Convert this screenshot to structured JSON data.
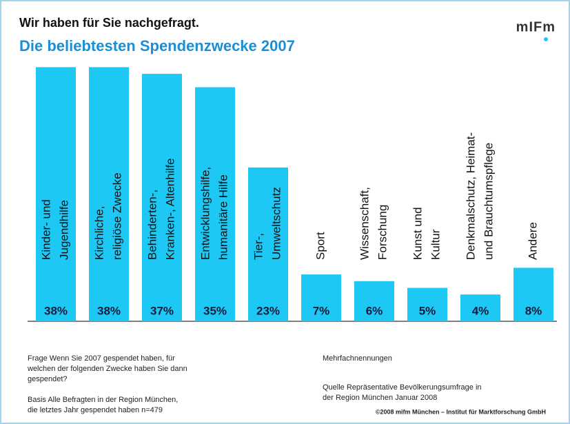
{
  "chart_data": {
    "type": "bar",
    "title": "Wir haben für Sie nachgefragt.",
    "subtitle": "Die beliebtesten Spendenzwecke 2007",
    "logo": "mIFm",
    "categories": [
      [
        "Kinder- und",
        "Jugendhilfe"
      ],
      [
        "Kirchliche,",
        "religiöse Zwecke"
      ],
      [
        "Behinderten-,",
        "Kranken-, Altenhilfe"
      ],
      [
        "Entwicklungshilfe,",
        "humanitäre Hilfe"
      ],
      [
        "Tier-,",
        "Umweltschutz"
      ],
      [
        "Sport"
      ],
      [
        "Wissenschaft,",
        "Forschung"
      ],
      [
        "Kunst und",
        "Kultur"
      ],
      [
        "Denkmalschutz, Heimat-",
        "und Brauchtumspflege"
      ],
      [
        "Andere"
      ]
    ],
    "values": [
      38,
      38,
      37,
      35,
      23,
      7,
      6,
      5,
      4,
      8
    ],
    "value_labels": [
      "38%",
      "38%",
      "37%",
      "35%",
      "23%",
      "7%",
      "6%",
      "5%",
      "4%",
      "8%"
    ],
    "color": "#1ec8f5",
    "notes_left": [
      [
        "Frage Wenn Sie 2007 gespendet haben, für",
        "welchen der folgenden Zwecke haben Sie dann",
        "gespendet?"
      ],
      [
        "Basis Alle Befragten in der Region München,",
        "die letztes Jahr gespendet haben n=479"
      ]
    ],
    "notes_right": [
      [
        "Mehrfachnennungen"
      ],
      [
        "Quelle Repräsentative Bevölkerungsumfrage in",
        "der Region München Januar 2008"
      ]
    ],
    "copyright": "©2008 mifm München – Institut für Marktforschung GmbH"
  }
}
